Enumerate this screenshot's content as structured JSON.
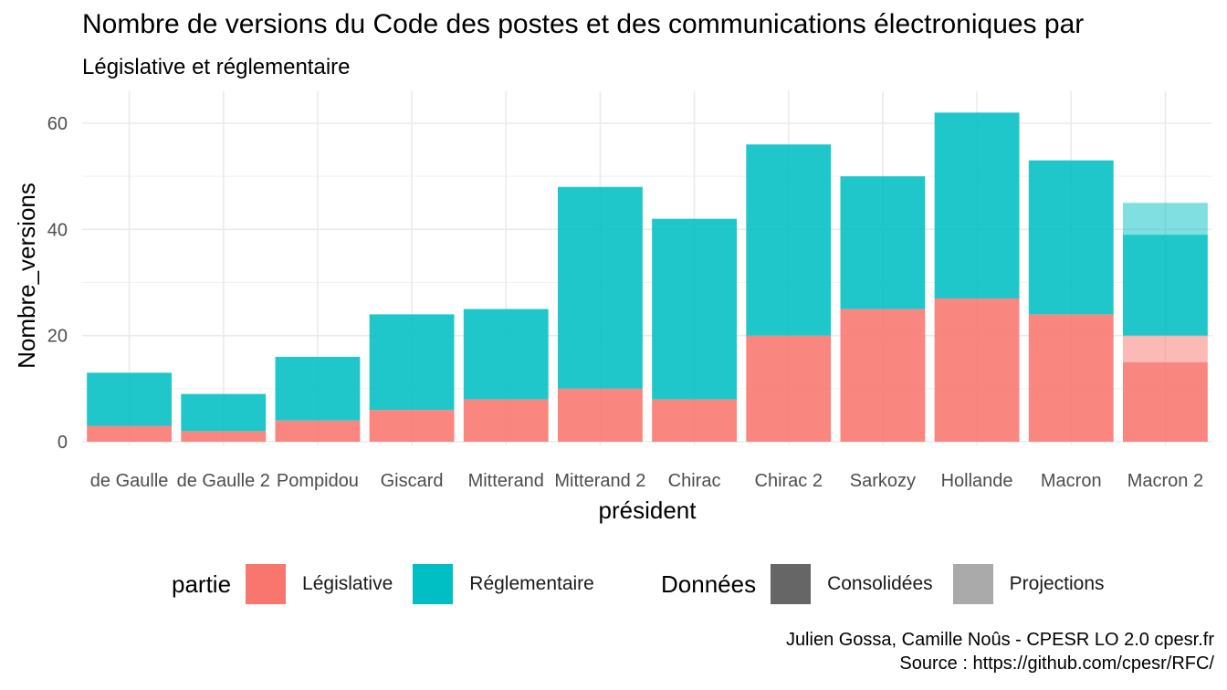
{
  "title": "Nombre de versions du Code des postes et des communications électroniques par",
  "subtitle": "Législative et réglementaire",
  "caption": {
    "line1": "Julien Gossa, Camille Noûs - CPESR LO 2.0 cpesr.fr",
    "line2": "Source : https://github.com/cpesr/RFC/"
  },
  "legend": {
    "partie_title": "partie",
    "partie_items": [
      {
        "label": "Législative",
        "color": "#F8766D"
      },
      {
        "label": "Réglementaire",
        "color": "#00BFC4"
      }
    ],
    "donnees_title": "Données",
    "donnees_items": [
      {
        "label": "Consolidées",
        "color": "#666666"
      },
      {
        "label": "Projections",
        "color": "#AAAAAA"
      }
    ]
  },
  "chart_data": {
    "type": "bar",
    "stacked": true,
    "xlabel": "président",
    "ylabel": "Nombre_versions",
    "ylim": [
      0,
      65
    ],
    "yticks": [
      0,
      20,
      40,
      60
    ],
    "grid": true,
    "legend_position": "bottom",
    "categories": [
      "de Gaulle",
      "de Gaulle 2",
      "Pompidou",
      "Giscard",
      "Mitterand",
      "Mitterand 2",
      "Chirac",
      "Chirac 2",
      "Sarkozy",
      "Hollande",
      "Macron",
      "Macron 2"
    ],
    "series": [
      {
        "name": "Législative",
        "data": "Consolidées",
        "color": "#F8766D",
        "values": [
          3,
          2,
          4,
          6,
          8,
          10,
          8,
          20,
          25,
          27,
          24,
          15
        ]
      },
      {
        "name": "Législative",
        "data": "Projections",
        "color": "#F8766D",
        "values": [
          0,
          0,
          0,
          0,
          0,
          0,
          0,
          0,
          0,
          0,
          0,
          5
        ]
      },
      {
        "name": "Réglementaire",
        "data": "Consolidées",
        "color": "#00BFC4",
        "values": [
          10,
          7,
          12,
          18,
          17,
          38,
          34,
          36,
          25,
          35,
          29,
          19
        ]
      },
      {
        "name": "Réglementaire",
        "data": "Projections",
        "color": "#00BFC4",
        "values": [
          0,
          0,
          0,
          0,
          0,
          0,
          0,
          0,
          0,
          0,
          0,
          6
        ]
      }
    ]
  }
}
